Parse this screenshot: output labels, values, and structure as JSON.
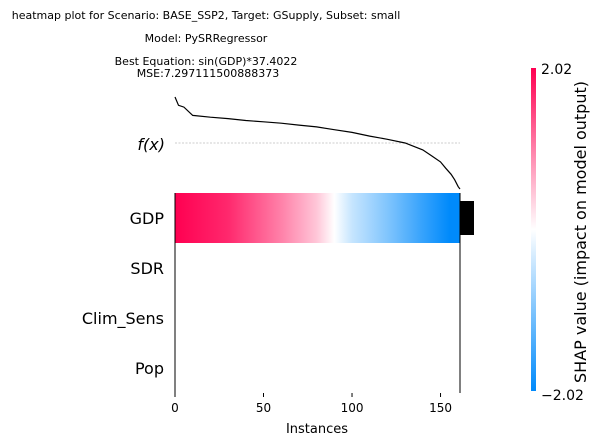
{
  "title": {
    "line1": "heatmap plot for Scenario: BASE_SSP2, Target: GSupply, Subset: small",
    "line2": "Model: PySRRegressor",
    "line3": "Best Equation: sin(GDP)*37.4022",
    "line4": "MSE:7.297111500888373"
  },
  "chart_data": {
    "type": "heatmap",
    "xlabel": "Instances",
    "xlim": [
      0,
      161
    ],
    "xticks": [
      0,
      50,
      100,
      150
    ],
    "features": [
      "GDP",
      "SDR",
      "Clim_Sens",
      "Pop"
    ],
    "fx_label": "f(x)",
    "n_instances": 161,
    "fx_curve": {
      "x": [
        0,
        2,
        5,
        10,
        20,
        30,
        40,
        50,
        60,
        70,
        80,
        90,
        100,
        110,
        120,
        130,
        140,
        145,
        150,
        153,
        156,
        158,
        160,
        161
      ],
      "y": [
        1.0,
        0.82,
        0.78,
        0.6,
        0.56,
        0.53,
        0.49,
        0.46,
        0.43,
        0.39,
        0.35,
        0.29,
        0.23,
        0.15,
        0.08,
        0.0,
        -0.15,
        -0.28,
        -0.41,
        -0.55,
        -0.68,
        -0.8,
        -0.95,
        -1.0
      ]
    },
    "fx_baseline": 0.0,
    "gdp_shap": {
      "x": [
        0,
        30,
        60,
        80,
        90,
        100,
        120,
        140,
        155,
        161
      ],
      "values": [
        2.02,
        1.7,
        1.0,
        0.45,
        0.0,
        -0.45,
        -1.0,
        -1.6,
        -2.02,
        -2.02
      ]
    },
    "other_features_shap": 0.0,
    "feature_importance": [
      {
        "feature": "GDP",
        "value": 1.0
      },
      {
        "feature": "SDR",
        "value": 0.0
      },
      {
        "feature": "Clim_Sens",
        "value": 0.0
      },
      {
        "feature": "Pop",
        "value": 0.0
      }
    ],
    "colorbar": {
      "label": "SHAP value (impact on model output)",
      "max_label": "2.02",
      "min_label": "−2.02",
      "vmin": -2.02,
      "vmax": 2.02,
      "colors": [
        "#008afb",
        "#ffffff",
        "#ff0051"
      ]
    }
  }
}
